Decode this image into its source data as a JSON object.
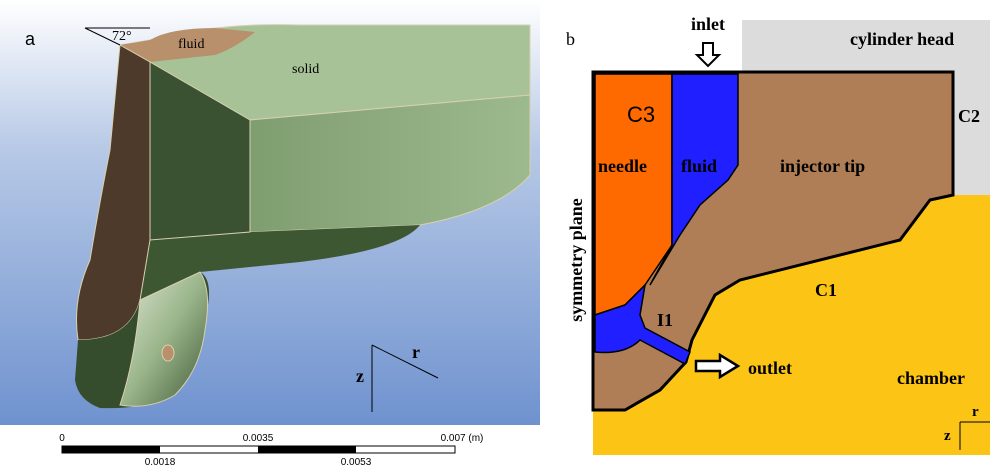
{
  "panel_a": {
    "label": "a",
    "angle": "72°",
    "fluid": "fluid",
    "solid": "solid",
    "axis_r": "r",
    "axis_z": "z",
    "scale_bar": {
      "top": [
        "0",
        "0.0035",
        "0.007 (m)"
      ],
      "bottom": [
        "0.0018",
        "0.0053"
      ]
    }
  },
  "panel_b": {
    "label": "b",
    "inlet": "inlet",
    "cylinder_head": "cylinder head",
    "c3": "C3",
    "needle": "needle",
    "fluid": "fluid",
    "injector_tip": "injector tip",
    "c2": "C2",
    "symmetry_plane": "symmetry plane",
    "c1": "C1",
    "i1": "I1",
    "outlet": "outlet",
    "chamber": "chamber",
    "axis_r": "r",
    "axis_z": "z"
  }
}
